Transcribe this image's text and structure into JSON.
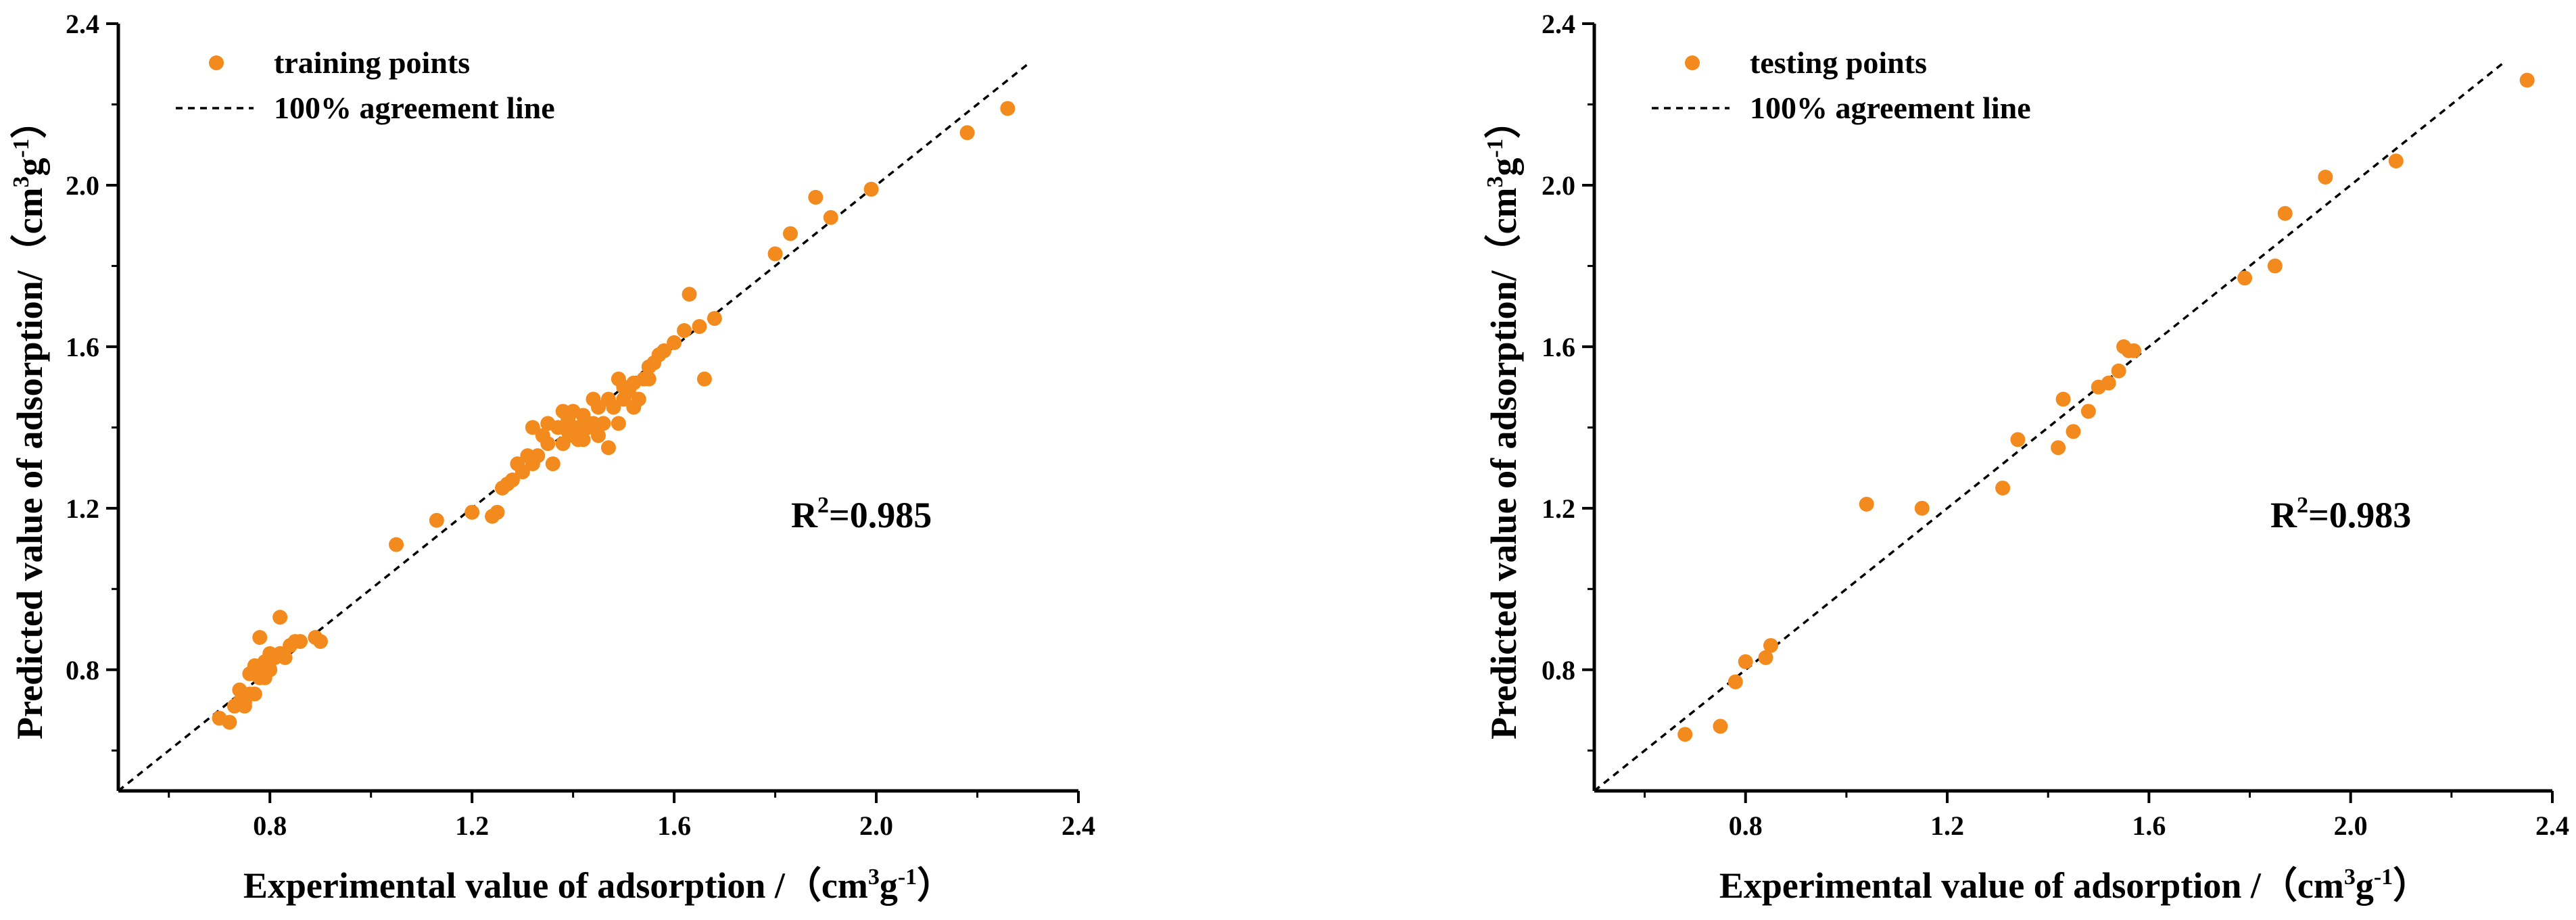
{
  "chart_data": [
    {
      "type": "scatter",
      "xlabel_main": "Experimental value of adsorption  /（cm",
      "xlabel_sup1": "3",
      "xlabel_mid": "g",
      "xlabel_sup2": "-1",
      "xlabel_end": "）",
      "ylabel_main": "Predicted value of adsorption/（cm",
      "ylabel_sup1": "3",
      "ylabel_mid": "g",
      "ylabel_sup2": "-1",
      "ylabel_end": "）",
      "xlim": [
        0.5,
        2.4
      ],
      "ylim": [
        0.5,
        2.4
      ],
      "xticks": [
        "0.8",
        "1.2",
        "1.6",
        "2.0",
        "2.4"
      ],
      "yticks": [
        "0.8",
        "1.2",
        "1.6",
        "2.0",
        "2.4"
      ],
      "legend": {
        "points": "training points",
        "line": "100% agreement line",
        "placement": "top-left"
      },
      "r2_prefix": "R",
      "r2_sup": "2",
      "r2_value": "=0.985",
      "colors": {
        "points": "#F28A1E",
        "line": "#000000"
      },
      "series": [
        {
          "name": "training points",
          "x": [
            0.7,
            0.72,
            0.73,
            0.74,
            0.75,
            0.76,
            0.76,
            0.77,
            0.77,
            0.78,
            0.78,
            0.79,
            0.79,
            0.8,
            0.8,
            0.81,
            0.82,
            0.82,
            0.83,
            0.84,
            0.85,
            0.86,
            0.89,
            0.9,
            0.78,
            0.82,
            0.75,
            0.74,
            1.05,
            1.13,
            1.2,
            1.24,
            1.25,
            1.26,
            1.27,
            1.28,
            1.29,
            1.3,
            1.31,
            1.32,
            1.32,
            1.33,
            1.34,
            1.35,
            1.35,
            1.36,
            1.37,
            1.38,
            1.38,
            1.39,
            1.39,
            1.4,
            1.4,
            1.41,
            1.41,
            1.42,
            1.42,
            1.43,
            1.44,
            1.44,
            1.45,
            1.45,
            1.46,
            1.47,
            1.47,
            1.48,
            1.49,
            1.49,
            1.5,
            1.5,
            1.51,
            1.52,
            1.52,
            1.53,
            1.54,
            1.55,
            1.55,
            1.56,
            1.57,
            1.58,
            1.6,
            1.62,
            1.63,
            1.65,
            1.66,
            1.68,
            1.8,
            1.83,
            1.88,
            1.91,
            1.99,
            2.18,
            2.26
          ],
          "y": [
            0.68,
            0.67,
            0.71,
            0.72,
            0.72,
            0.74,
            0.79,
            0.74,
            0.81,
            0.78,
            0.8,
            0.78,
            0.82,
            0.8,
            0.84,
            0.83,
            0.84,
            0.84,
            0.83,
            0.86,
            0.87,
            0.87,
            0.88,
            0.87,
            0.88,
            0.93,
            0.71,
            0.75,
            1.11,
            1.17,
            1.19,
            1.18,
            1.19,
            1.25,
            1.26,
            1.27,
            1.31,
            1.29,
            1.33,
            1.31,
            1.4,
            1.33,
            1.38,
            1.36,
            1.41,
            1.31,
            1.4,
            1.36,
            1.44,
            1.39,
            1.42,
            1.38,
            1.44,
            1.37,
            1.4,
            1.43,
            1.37,
            1.4,
            1.47,
            1.41,
            1.45,
            1.38,
            1.41,
            1.35,
            1.47,
            1.45,
            1.41,
            1.52,
            1.47,
            1.5,
            1.49,
            1.45,
            1.51,
            1.47,
            1.52,
            1.52,
            1.55,
            1.56,
            1.58,
            1.59,
            1.61,
            1.64,
            1.73,
            1.65,
            1.52,
            1.67,
            1.83,
            1.88,
            1.97,
            1.92,
            1.99,
            2.13,
            2.19
          ]
        }
      ]
    },
    {
      "type": "scatter",
      "xlabel_main": "Experimental value of adsorption  /（cm",
      "xlabel_sup1": "3",
      "xlabel_mid": "g",
      "xlabel_sup2": "-1",
      "xlabel_end": "）",
      "ylabel_main": "Predicted value of adsorption/（cm",
      "ylabel_sup1": "3",
      "ylabel_mid": "g",
      "ylabel_sup2": "-1",
      "ylabel_end": "）",
      "xlim": [
        0.5,
        2.4
      ],
      "ylim": [
        0.5,
        2.4
      ],
      "xticks": [
        "0.8",
        "1.2",
        "1.6",
        "2.0",
        "2.4"
      ],
      "yticks": [
        "0.8",
        "1.2",
        "1.6",
        "2.0",
        "2.4"
      ],
      "legend": {
        "points": "testing points",
        "line": "100% agreement line",
        "placement": "top-left"
      },
      "r2_prefix": "R",
      "r2_sup": "2",
      "r2_value": "=0.983",
      "colors": {
        "points": "#F28A1E",
        "line": "#000000"
      },
      "series": [
        {
          "name": "testing points",
          "x": [
            0.68,
            0.75,
            0.78,
            0.8,
            0.84,
            0.85,
            1.04,
            1.15,
            1.31,
            1.34,
            1.42,
            1.43,
            1.45,
            1.48,
            1.5,
            1.52,
            1.54,
            1.55,
            1.56,
            1.57,
            1.79,
            1.85,
            1.87,
            1.95,
            2.09,
            2.35
          ],
          "y": [
            0.64,
            0.66,
            0.77,
            0.82,
            0.83,
            0.86,
            1.21,
            1.2,
            1.25,
            1.37,
            1.35,
            1.47,
            1.39,
            1.44,
            1.5,
            1.51,
            1.54,
            1.6,
            1.59,
            1.59,
            1.77,
            1.8,
            1.93,
            2.02,
            2.06,
            2.26
          ]
        }
      ]
    }
  ]
}
